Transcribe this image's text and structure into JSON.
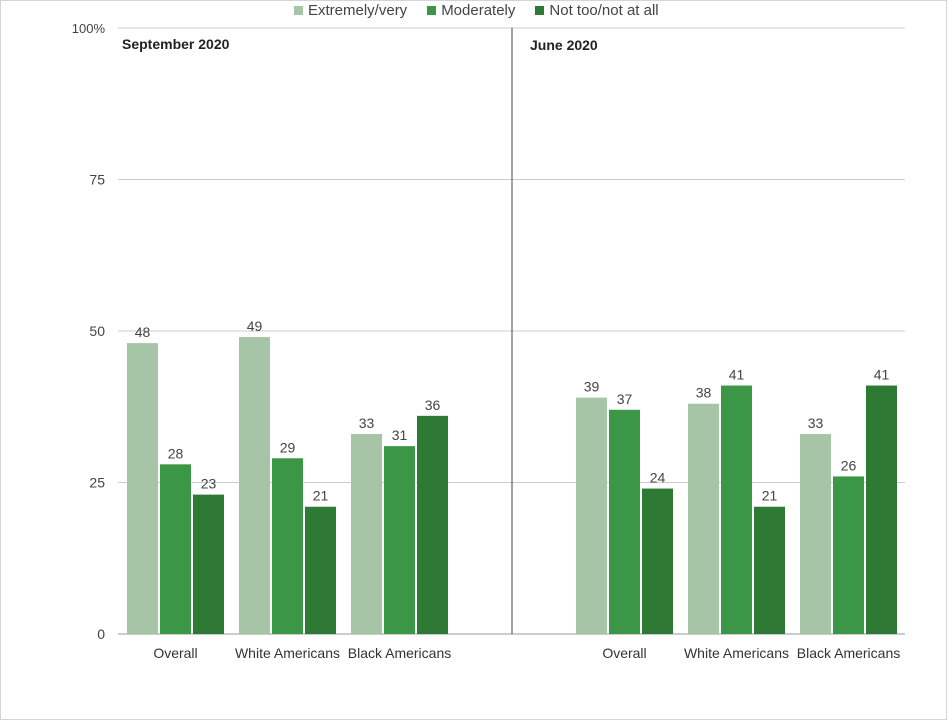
{
  "legend": [
    {
      "label": "Extremely/very",
      "color": "#a6c4a6"
    },
    {
      "label": "Moderately",
      "color": "#3b9645"
    },
    {
      "label": "Not too/not at all",
      "color": "#2e7a35"
    }
  ],
  "panels": [
    {
      "title": "September 2020"
    },
    {
      "title": "June 2020"
    }
  ],
  "chart_data": {
    "type": "bar",
    "ylim": [
      0,
      100
    ],
    "yticks": [
      {
        "value": 0,
        "label": "0"
      },
      {
        "value": 25,
        "label": "25"
      },
      {
        "value": 50,
        "label": "50"
      },
      {
        "value": 75,
        "label": "75"
      },
      {
        "value": 100,
        "label": "100%"
      }
    ],
    "grid": true,
    "legend_position": "top",
    "panels": [
      {
        "title": "September 2020",
        "categories": [
          "Overall",
          "White Americans",
          "Black Americans"
        ],
        "series": [
          {
            "name": "Extremely/very",
            "values": [
              48,
              49,
              33
            ]
          },
          {
            "name": "Moderately",
            "values": [
              28,
              29,
              31
            ]
          },
          {
            "name": "Not too/not at all",
            "values": [
              23,
              21,
              36
            ]
          }
        ]
      },
      {
        "title": "June 2020",
        "categories": [
          "Overall",
          "White Americans",
          "Black Americans"
        ],
        "series": [
          {
            "name": "Extremely/very",
            "values": [
              39,
              38,
              33
            ]
          },
          {
            "name": "Moderately",
            "values": [
              37,
              41,
              26
            ]
          },
          {
            "name": "Not too/not at all",
            "values": [
              24,
              21,
              41
            ]
          }
        ]
      }
    ]
  }
}
